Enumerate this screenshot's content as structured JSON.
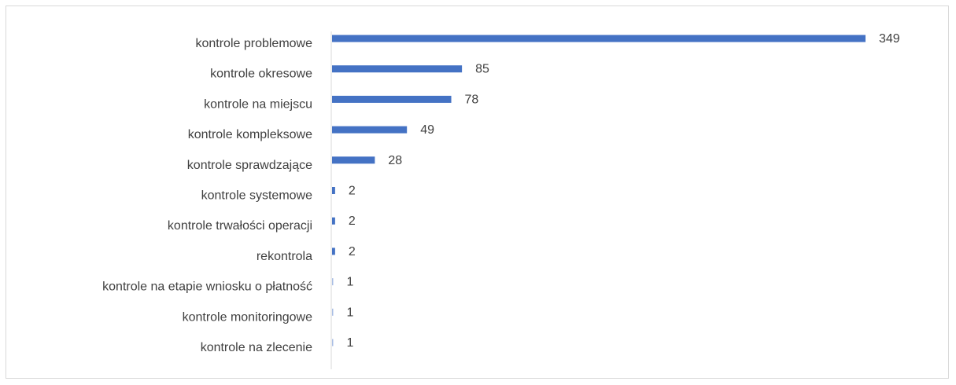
{
  "chart_data": {
    "type": "bar",
    "orientation": "horizontal",
    "categories": [
      "kontrole problemowe",
      "kontrole okresowe",
      "kontrole na miejscu",
      "kontrole kompleksowe",
      "kontrole sprawdzające",
      "kontrole systemowe",
      "kontrole trwałości operacji",
      "rekontrola",
      "kontrole na etapie wniosku o płatność",
      "kontrole monitoringowe",
      "kontrole na zlecenie"
    ],
    "values": [
      349,
      85,
      78,
      49,
      28,
      2,
      2,
      2,
      1,
      1,
      1
    ],
    "bar_color": "#4472c4",
    "small_bar_color": "#a9bde4",
    "axis_color": "#d9d9d9",
    "grid": false,
    "legend": "none"
  }
}
